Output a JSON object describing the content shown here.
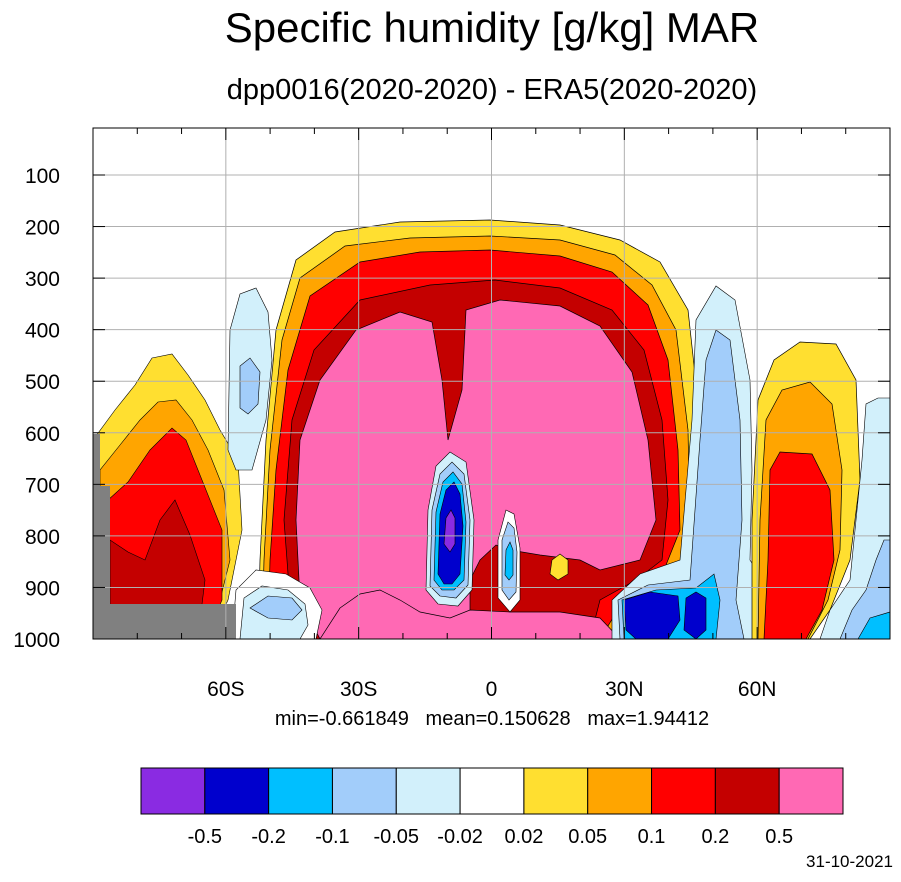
{
  "title": "Specific humidity [g/kg] MAR",
  "subtitle": "dpp0016(2020-2020) - ERA5(2020-2020)",
  "stats": "min=-0.661849   mean=0.150628   max=1.94412",
  "date": "31-10-2021",
  "chart_data": {
    "type": "contour",
    "x_ticks": [
      {
        "value": -60,
        "label": "60S"
      },
      {
        "value": -30,
        "label": "30S"
      },
      {
        "value": 0,
        "label": "0"
      },
      {
        "value": 30,
        "label": "30N"
      },
      {
        "value": 60,
        "label": "60N"
      }
    ],
    "y_ticks": [
      100,
      200,
      300,
      400,
      500,
      600,
      700,
      800,
      900,
      1000
    ],
    "xlim": [
      -90,
      90
    ],
    "ylim": [
      1000,
      10
    ],
    "grid": true,
    "levels": [
      "-0.5",
      "-0.2",
      "-0.1",
      "-0.05",
      "-0.02",
      "0.02",
      "0.05",
      "0.1",
      "0.2",
      "0.5"
    ],
    "colors": [
      "#8a2be2",
      "#0000cd",
      "#00bfff",
      "#a2cdfa",
      "#d2f0fb",
      "#ffffff",
      "#ffdf30",
      "#ffa500",
      "#ff0000",
      "#c40000",
      "#ff69b4"
    ],
    "missing_color": "#808080",
    "contours": [
      {
        "level": "0.02",
        "x": -48,
        "y": 0.68,
        "rx": 3,
        "ry": 0.35
      },
      {
        "level": "0.5",
        "x": -5,
        "y": 0.47,
        "rx": 14,
        "ry": 0.13
      }
    ]
  }
}
